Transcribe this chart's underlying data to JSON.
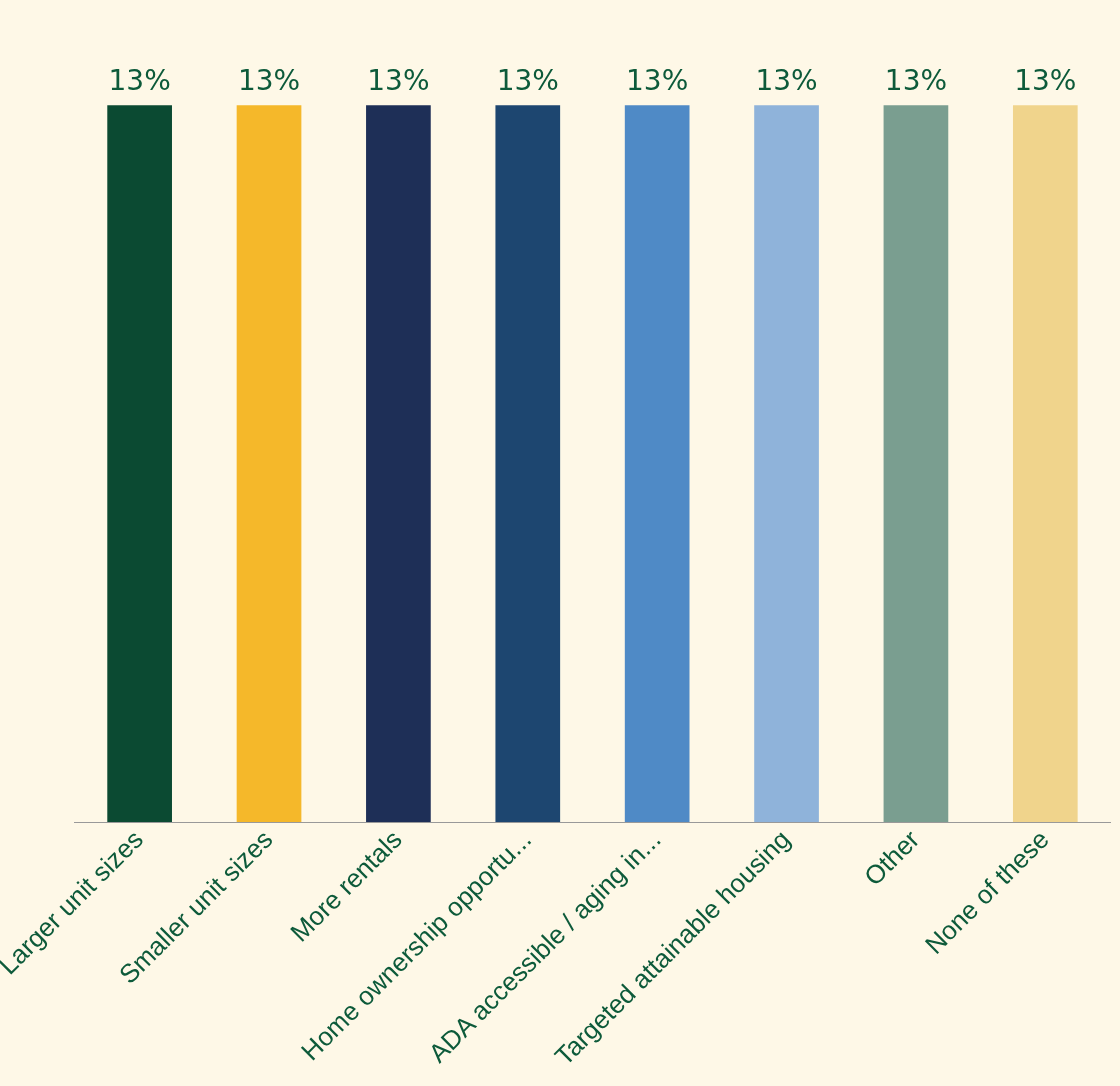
{
  "chart_data": {
    "type": "bar",
    "categories": [
      "Larger unit sizes",
      "Smaller unit sizes",
      "More rentals",
      "Home ownership opportu...",
      "ADA accessible / aging in...",
      "Targeted attainable housing",
      "Other",
      "None of these"
    ],
    "values": [
      13,
      13,
      13,
      13,
      13,
      13,
      13,
      13
    ],
    "colors": [
      "#0b4a32",
      "#f5b82a",
      "#1e2f57",
      "#1d4670",
      "#4f8ac6",
      "#8fb3da",
      "#7a9e90",
      "#f0d48c"
    ],
    "value_labels": [
      "13%",
      "13%",
      "13%",
      "13%",
      "13%",
      "13%",
      "13%",
      "13%"
    ],
    "relative": false,
    "grid": false,
    "legend": false
  }
}
